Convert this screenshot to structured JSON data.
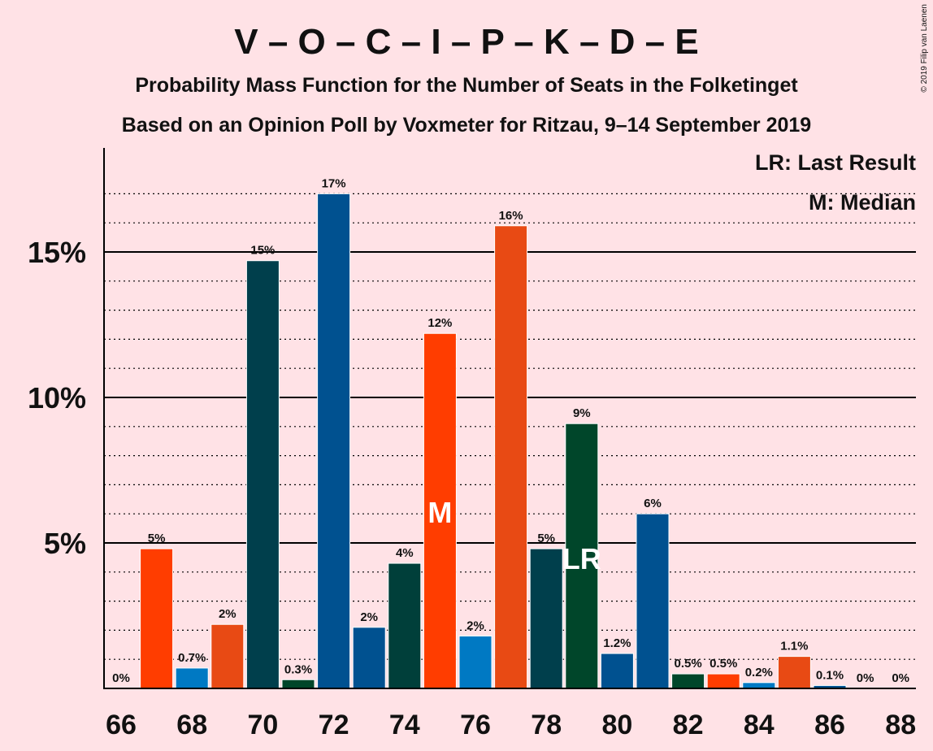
{
  "colors": {
    "background": "#ffe2e6",
    "grid": "#000000"
  },
  "copyright": "© 2019 Filip van Laenen",
  "chart_data": {
    "type": "bar",
    "title": "V – O – C – I – P – K – D – E",
    "subtitle": "Probability Mass Function for the Number of Seats in the Folketinget",
    "subtitle2": "Based on an Opinion Poll by Voxmeter for Ritzau, 9–14 September 2019",
    "xlabel": "",
    "ylabel": "",
    "ylim": [
      0,
      18.5
    ],
    "y_ticks": [
      {
        "value": 5,
        "label": "5%"
      },
      {
        "value": 10,
        "label": "10%"
      },
      {
        "value": 15,
        "label": "15%"
      }
    ],
    "x_ticks": [
      66,
      68,
      70,
      72,
      74,
      76,
      78,
      80,
      82,
      84,
      86,
      88
    ],
    "legend": {
      "position": "top-right",
      "entries": [
        "LR: Last Result",
        "M: Median"
      ]
    },
    "median": {
      "x": 75,
      "label": "M"
    },
    "last_result": {
      "x": 79,
      "label": "LR"
    },
    "bars": [
      {
        "x": 66,
        "value": 0,
        "label": "0%",
        "color": "#e84a14"
      },
      {
        "x": 67,
        "value": 4.8,
        "label": "5%",
        "color": "#ff3d00"
      },
      {
        "x": 68,
        "value": 0.7,
        "label": "0.7%",
        "color": "#0079c3"
      },
      {
        "x": 69,
        "value": 2.2,
        "label": "2%",
        "color": "#e84a14"
      },
      {
        "x": 70,
        "value": 14.7,
        "label": "15%",
        "color": "#003f4c"
      },
      {
        "x": 71,
        "value": 0.3,
        "label": "0.3%",
        "color": "#00462a"
      },
      {
        "x": 72,
        "value": 17.0,
        "label": "17%",
        "color": "#005190"
      },
      {
        "x": 73,
        "value": 2.1,
        "label": "2%",
        "color": "#005190"
      },
      {
        "x": 74,
        "value": 4.3,
        "label": "4%",
        "color": "#003f3a"
      },
      {
        "x": 75,
        "value": 12.2,
        "label": "12%",
        "color": "#ff3d00"
      },
      {
        "x": 76,
        "value": 1.8,
        "label": "2%",
        "color": "#0079c3"
      },
      {
        "x": 77,
        "value": 15.9,
        "label": "16%",
        "color": "#e84a14"
      },
      {
        "x": 78,
        "value": 4.8,
        "label": "5%",
        "color": "#003f4c"
      },
      {
        "x": 79,
        "value": 9.1,
        "label": "9%",
        "color": "#00462a"
      },
      {
        "x": 80,
        "value": 1.2,
        "label": "1.2%",
        "color": "#005190"
      },
      {
        "x": 81,
        "value": 6.0,
        "label": "6%",
        "color": "#005190"
      },
      {
        "x": 82,
        "value": 0.5,
        "label": "0.5%",
        "color": "#00462a"
      },
      {
        "x": 83,
        "value": 0.5,
        "label": "0.5%",
        "color": "#ff3d00"
      },
      {
        "x": 84,
        "value": 0.2,
        "label": "0.2%",
        "color": "#0079c3"
      },
      {
        "x": 85,
        "value": 1.1,
        "label": "1.1%",
        "color": "#e84a14"
      },
      {
        "x": 86,
        "value": 0.1,
        "label": "0.1%",
        "color": "#005190"
      },
      {
        "x": 87,
        "value": 0,
        "label": "0%",
        "color": "#00462a"
      },
      {
        "x": 88,
        "value": 0,
        "label": "0%",
        "color": "#ff3d00"
      }
    ]
  }
}
